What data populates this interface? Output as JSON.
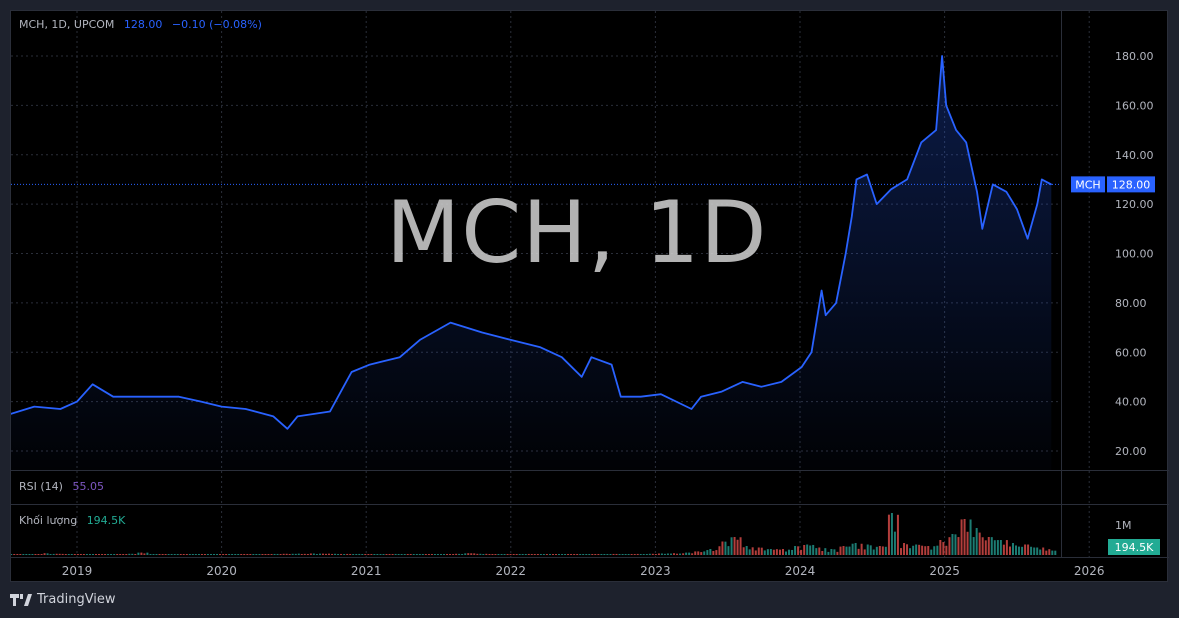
{
  "header": {
    "symbol": "MCH, 1D, UPCOM",
    "price": "128.00",
    "change": "−0.10 (−0.08%)"
  },
  "watermark": "MCH, 1D",
  "colors": {
    "line": "#2962ff",
    "up": "#26a69a",
    "down": "#ef5350",
    "rsi": "#7e57c2",
    "badge_volume": "#22ab94"
  },
  "price_axis": {
    "ticks": [
      "180.00",
      "160.00",
      "140.00",
      "120.00",
      "100.00",
      "80.00",
      "60.00",
      "40.00",
      "20.00"
    ],
    "last_label_symbol": "MCH",
    "last_label_value": "128.00"
  },
  "rsi": {
    "label": "RSI (14)",
    "value": "55.05"
  },
  "volume": {
    "label": "Khối lượng",
    "value": "194.5K",
    "axis_tick": "1M",
    "last_badge": "194.5K"
  },
  "time_axis": {
    "ticks": [
      "2019",
      "2020",
      "2021",
      "2022",
      "2023",
      "2024",
      "2025",
      "2026"
    ]
  },
  "footer": {
    "brand": "TradingView"
  },
  "chart_data": {
    "type": "line",
    "series": [
      {
        "name": "MCH",
        "points": [
          [
            "2018-07-15",
            35
          ],
          [
            "2018-09-15",
            38
          ],
          [
            "2018-11-20",
            37
          ],
          [
            "2019-01-01",
            40
          ],
          [
            "2019-02-10",
            47
          ],
          [
            "2019-04-01",
            42
          ],
          [
            "2019-06-25",
            42
          ],
          [
            "2019-09-15",
            42
          ],
          [
            "2019-11-10",
            40
          ],
          [
            "2020-01-01",
            38
          ],
          [
            "2020-03-01",
            37
          ],
          [
            "2020-05-10",
            34
          ],
          [
            "2020-06-15",
            29
          ],
          [
            "2020-07-10",
            34
          ],
          [
            "2020-10-01",
            36
          ],
          [
            "2020-11-01",
            45
          ],
          [
            "2020-11-25",
            52
          ],
          [
            "2021-01-10",
            55
          ],
          [
            "2021-03-25",
            58
          ],
          [
            "2021-05-15",
            65
          ],
          [
            "2021-08-01",
            72
          ],
          [
            "2021-10-20",
            68
          ],
          [
            "2022-01-01",
            65
          ],
          [
            "2022-03-15",
            62
          ],
          [
            "2022-05-08",
            58
          ],
          [
            "2022-06-28",
            50
          ],
          [
            "2022-07-22",
            58
          ],
          [
            "2022-09-12",
            55
          ],
          [
            "2022-10-05",
            42
          ],
          [
            "2022-11-25",
            42
          ],
          [
            "2023-01-15",
            43
          ],
          [
            "2023-04-01",
            37
          ],
          [
            "2023-04-25",
            42
          ],
          [
            "2023-06-15",
            44
          ],
          [
            "2023-08-08",
            48
          ],
          [
            "2023-09-25",
            46
          ],
          [
            "2023-11-15",
            48
          ],
          [
            "2024-01-05",
            54
          ],
          [
            "2024-01-30",
            60
          ],
          [
            "2024-02-25",
            85
          ],
          [
            "2024-03-05",
            75
          ],
          [
            "2024-04-01",
            80
          ],
          [
            "2024-04-25",
            100
          ],
          [
            "2024-05-10",
            115
          ],
          [
            "2024-05-22",
            130
          ],
          [
            "2024-06-18",
            132
          ],
          [
            "2024-07-12",
            120
          ],
          [
            "2024-08-18",
            126
          ],
          [
            "2024-09-28",
            130
          ],
          [
            "2024-11-03",
            145
          ],
          [
            "2024-12-10",
            150
          ],
          [
            "2024-12-25",
            180
          ],
          [
            "2025-01-05",
            160
          ],
          [
            "2025-01-30",
            150
          ],
          [
            "2025-02-25",
            145
          ],
          [
            "2025-03-22",
            125
          ],
          [
            "2025-04-05",
            110
          ],
          [
            "2025-05-01",
            128
          ],
          [
            "2025-06-05",
            125
          ],
          [
            "2025-07-01",
            118
          ],
          [
            "2025-07-28",
            106
          ],
          [
            "2025-08-22",
            120
          ],
          [
            "2025-09-03",
            130
          ],
          [
            "2025-09-27",
            128
          ]
        ]
      }
    ],
    "volume_k": [
      20,
      25,
      30,
      60,
      40,
      30,
      25,
      20,
      30,
      25,
      40,
      80,
      30,
      25,
      20,
      20,
      30,
      25,
      20,
      20,
      25,
      30,
      35,
      40,
      45,
      50,
      45,
      40,
      35,
      35,
      30,
      30,
      35,
      30,
      30,
      25,
      30,
      40,
      60,
      40,
      30,
      25,
      30,
      35,
      30,
      25,
      25,
      30,
      25,
      30,
      35,
      30,
      35,
      40,
      50,
      60,
      80,
      120,
      200,
      450,
      600,
      300,
      250,
      200,
      200,
      300,
      350,
      250,
      200,
      300,
      400,
      350,
      300,
      1400,
      400,
      350,
      300,
      500,
      700,
      1200,
      900,
      600,
      500,
      400,
      350,
      250,
      194.5
    ],
    "volume_range": [
      "2018-07-15",
      "2025-09-27"
    ],
    "ylim": [
      20,
      180
    ],
    "grid": true,
    "last_price": 128.0
  }
}
